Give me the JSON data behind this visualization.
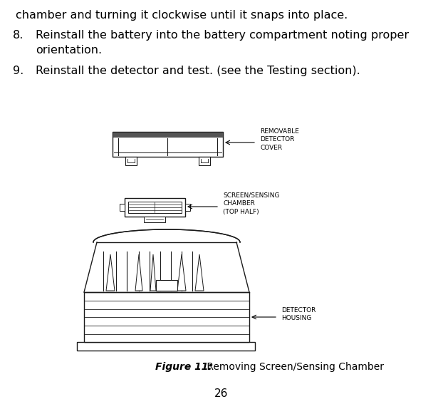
{
  "background_color": "#ffffff",
  "text_line1": "chamber and turning it clockwise until it snaps into place.",
  "item8_num": "8.",
  "item8_text_line1": "Reinstall the battery into the battery compartment noting proper",
  "item8_text_line2": "orientation.",
  "item9_num": "9.",
  "item9_text": "Reinstall the detector and test. (see the Testing section).",
  "label1": "REMOVABLE\nDETECTOR\nCOVER",
  "label2": "SCREEN/SENSING\nCHAMBER\n(TOP HALF)",
  "label3": "DETECTOR\nHOUSING",
  "figure_label_bold": "Figure 11:",
  "figure_label_normal": " Removing Screen/Sensing Chamber",
  "page_number": "26",
  "font_size_body": 11.5,
  "font_size_label": 6.5,
  "font_size_figure": 10,
  "font_size_page": 11
}
